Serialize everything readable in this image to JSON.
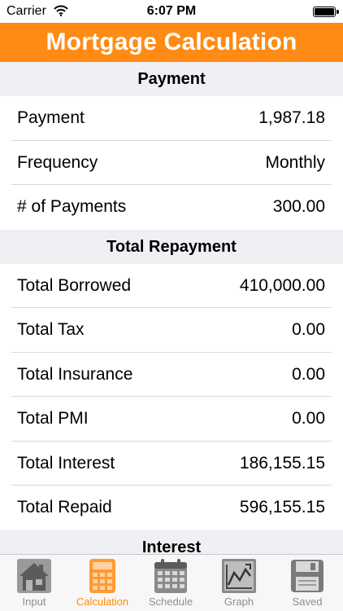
{
  "status_bar": {
    "carrier": "Carrier",
    "time": "6:07 PM"
  },
  "header": {
    "title": "Mortgage Calculation"
  },
  "sections": [
    {
      "title": "Payment",
      "rows": [
        {
          "label": "Payment",
          "value": "1,987.18"
        },
        {
          "label": "Frequency",
          "value": "Monthly"
        },
        {
          "label": "# of Payments",
          "value": "300.00"
        }
      ]
    },
    {
      "title": "Total Repayment",
      "rows": [
        {
          "label": "Total Borrowed",
          "value": "410,000.00"
        },
        {
          "label": "Total Tax",
          "value": "0.00"
        },
        {
          "label": "Total Insurance",
          "value": "0.00"
        },
        {
          "label": "Total PMI",
          "value": "0.00"
        },
        {
          "label": "Total Interest",
          "value": "186,155.15"
        },
        {
          "label": "Total Repaid",
          "value": "596,155.15"
        }
      ]
    },
    {
      "title": "Interest",
      "rows": []
    }
  ],
  "tab_bar": {
    "active": "calculation",
    "tabs": [
      {
        "label": "Input",
        "icon": "house-icon"
      },
      {
        "label": "Calculation",
        "icon": "calculator-icon"
      },
      {
        "label": "Schedule",
        "icon": "calendar-icon"
      },
      {
        "label": "Graph",
        "icon": "line-graph-icon"
      },
      {
        "label": "Saved",
        "icon": "floppy-disk-icon"
      }
    ]
  },
  "colors": {
    "accent": "#ff8a14",
    "section_bg": "#efeff4",
    "tab_inactive": "#8e8e93"
  }
}
